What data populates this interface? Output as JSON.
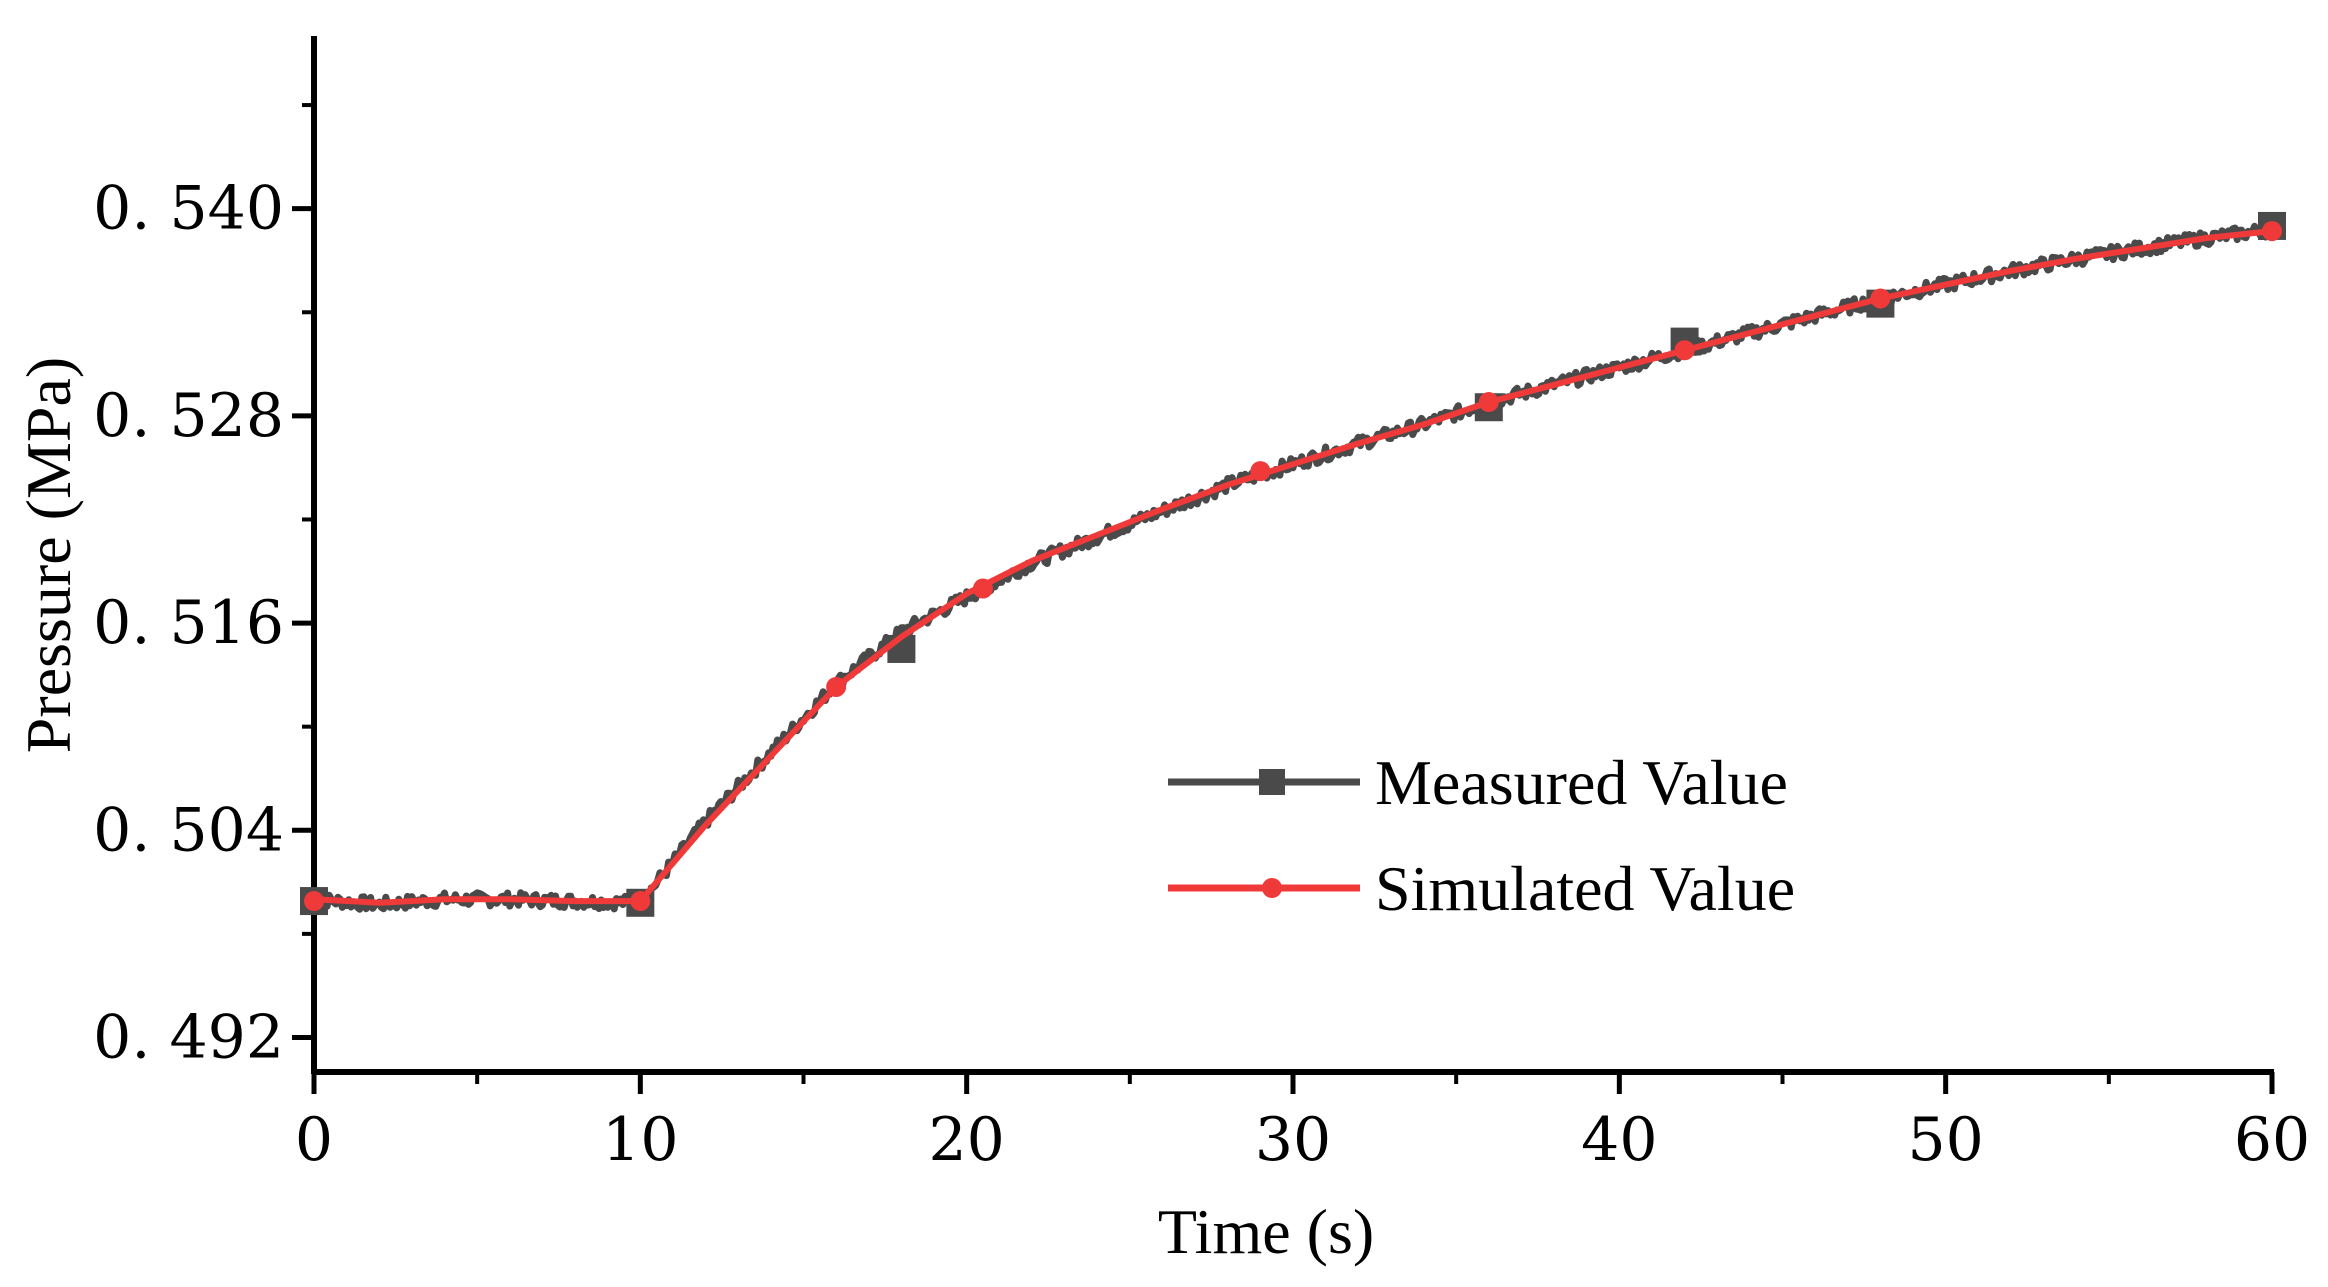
{
  "chart_data": {
    "type": "line",
    "title": "",
    "xlabel": "Time (s)",
    "ylabel": "Pressure (MPa)",
    "xlim": [
      0,
      60
    ],
    "ylim": [
      0.49,
      0.55
    ],
    "xticks": [
      0,
      10,
      20,
      30,
      40,
      50,
      60
    ],
    "xtick_labels": [
      "0",
      "10",
      "20",
      "30",
      "40",
      "50",
      "60"
    ],
    "yticks": [
      0.492,
      0.504,
      0.516,
      0.528,
      0.54
    ],
    "ytick_labels": [
      "0. 492",
      "0. 504",
      "0. 516",
      "0. 528",
      "0. 540"
    ],
    "grid": false,
    "legend_position": "center-right",
    "series": [
      {
        "name": "Measured Value",
        "color": "#4a4a4a",
        "marker": "square",
        "noise": 0.0004,
        "x": [
          0,
          2,
          4,
          6,
          8,
          10,
          12,
          14,
          16,
          18,
          20,
          22,
          24,
          26,
          28,
          30,
          32,
          34,
          36,
          38,
          40,
          42,
          44,
          46,
          48,
          50,
          52,
          54,
          56,
          58,
          60
        ],
        "y": [
          0.5,
          0.4997,
          0.5,
          0.5,
          0.4999,
          0.4998,
          0.5045,
          0.5085,
          0.5125,
          0.5155,
          0.5175,
          0.5195,
          0.521,
          0.5225,
          0.524,
          0.5252,
          0.5264,
          0.5275,
          0.5288,
          0.5298,
          0.5308,
          0.5318,
          0.5328,
          0.5338,
          0.5348,
          0.5356,
          0.5364,
          0.5371,
          0.5377,
          0.5383,
          0.5388
        ],
        "marker_x": [
          0,
          10,
          18,
          36,
          42,
          48,
          60
        ],
        "marker_y": [
          0.4999,
          0.4998,
          0.5145,
          0.5285,
          0.5323,
          0.5345,
          0.539
        ]
      },
      {
        "name": "Simulated Value",
        "color": "#f03a3a",
        "marker": "circle",
        "x": [
          0,
          2,
          4,
          6,
          8,
          10,
          12,
          14,
          16,
          18,
          20,
          22,
          24,
          26,
          28,
          30,
          32,
          34,
          36,
          38,
          40,
          42,
          44,
          46,
          48,
          50,
          52,
          54,
          56,
          58,
          60
        ],
        "y": [
          0.5,
          0.4998,
          0.5,
          0.5,
          0.4999,
          0.4999,
          0.5043,
          0.5083,
          0.5123,
          0.5152,
          0.5177,
          0.5196,
          0.5211,
          0.5226,
          0.524,
          0.5252,
          0.5264,
          0.5275,
          0.5288,
          0.5298,
          0.5308,
          0.5318,
          0.5328,
          0.5338,
          0.5348,
          0.5356,
          0.5364,
          0.5371,
          0.5377,
          0.5383,
          0.5387
        ],
        "marker_x": [
          0,
          10,
          16,
          20.5,
          29,
          36,
          42,
          48,
          60
        ],
        "marker_y": [
          0.4999,
          0.4999,
          0.5123,
          0.518,
          0.5248,
          0.5288,
          0.5318,
          0.5348,
          0.5387
        ]
      }
    ]
  }
}
